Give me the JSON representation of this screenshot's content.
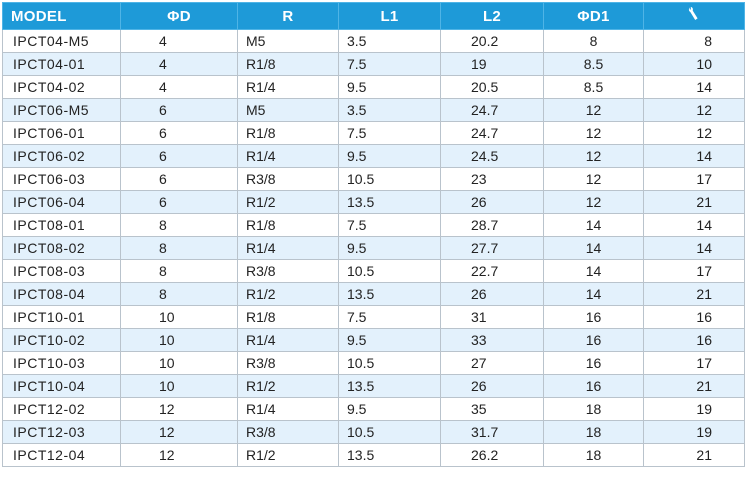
{
  "table": {
    "headers": [
      "MODEL",
      "ΦD",
      "R",
      "L1",
      "L2",
      "ΦD1",
      ""
    ],
    "hex_header_icon": "wrench-icon",
    "colors": {
      "header_bg": "#1e9ad8",
      "stripe": "#e3f1fc",
      "border": "#b9c3cc"
    },
    "rows": [
      [
        "IPCT04-M5",
        "4",
        "M5",
        "3.5",
        "20.2",
        "8",
        "8"
      ],
      [
        "IPCT04-01",
        "4",
        "R1/8",
        "7.5",
        "19",
        "8.5",
        "10"
      ],
      [
        "IPCT04-02",
        "4",
        "R1/4",
        "9.5",
        "20.5",
        "8.5",
        "14"
      ],
      [
        "IPCT06-M5",
        "6",
        "M5",
        "3.5",
        "24.7",
        "12",
        "12"
      ],
      [
        "IPCT06-01",
        "6",
        "R1/8",
        "7.5",
        "24.7",
        "12",
        "12"
      ],
      [
        "IPCT06-02",
        "6",
        "R1/4",
        "9.5",
        "24.5",
        "12",
        "14"
      ],
      [
        "IPCT06-03",
        "6",
        "R3/8",
        "10.5",
        "23",
        "12",
        "17"
      ],
      [
        "IPCT06-04",
        "6",
        "R1/2",
        "13.5",
        "26",
        "12",
        "21"
      ],
      [
        "IPCT08-01",
        "8",
        "R1/8",
        "7.5",
        "28.7",
        "14",
        "14"
      ],
      [
        "IPCT08-02",
        "8",
        "R1/4",
        "9.5",
        "27.7",
        "14",
        "14"
      ],
      [
        "IPCT08-03",
        "8",
        "R3/8",
        "10.5",
        "22.7",
        "14",
        "17"
      ],
      [
        "IPCT08-04",
        "8",
        "R1/2",
        "13.5",
        "26",
        "14",
        "21"
      ],
      [
        "IPCT10-01",
        "10",
        "R1/8",
        "7.5",
        "31",
        "16",
        "16"
      ],
      [
        "IPCT10-02",
        "10",
        "R1/4",
        "9.5",
        "33",
        "16",
        "16"
      ],
      [
        "IPCT10-03",
        "10",
        "R3/8",
        "10.5",
        "27",
        "16",
        "17"
      ],
      [
        "IPCT10-04",
        "10",
        "R1/2",
        "13.5",
        "26",
        "16",
        "21"
      ],
      [
        "IPCT12-02",
        "12",
        "R1/4",
        "9.5",
        "35",
        "18",
        "19"
      ],
      [
        "IPCT12-03",
        "12",
        "R3/8",
        "10.5",
        "31.7",
        "18",
        "19"
      ],
      [
        "IPCT12-04",
        "12",
        "R1/2",
        "13.5",
        "26.2",
        "18",
        "21"
      ]
    ]
  }
}
